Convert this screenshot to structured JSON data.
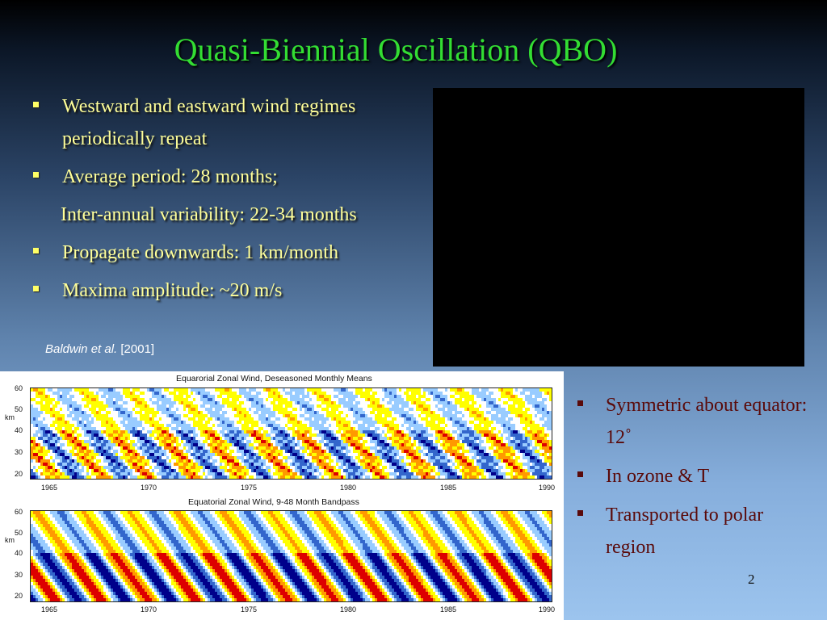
{
  "slide": {
    "title": "Quasi-Biennial Oscillation (QBO)",
    "bullets": [
      "Westward and eastward wind regimes periodically repeat",
      "Average period: 28 months;",
      "Inter-annual variability: 22-34 months",
      "Propagate downwards: 1 km/month",
      "Maxima amplitude: ~20 m/s"
    ],
    "citation_author": "Baldwin et al.",
    "citation_year": "[2001]",
    "right_bullets": [
      "Symmetric about equator: 12˚",
      "In ozone & T",
      "Transported to polar region"
    ],
    "slide_number": "2"
  },
  "figure": {
    "top_title": "Equarorial Zonal Wind, Deseasoned Monthly Means",
    "bottom_title": "Equatorial Zonal Wind, 9-48 Month Bandpass",
    "y_unit": "km",
    "y_ticks": [
      "60",
      "50",
      "40",
      "30",
      "20"
    ],
    "x_ticks": [
      "1965",
      "1970",
      "1975",
      "1980",
      "1985",
      "1990"
    ]
  },
  "chart_data": [
    {
      "type": "heatmap",
      "title": "Equarorial Zonal Wind, Deseasoned Monthly Means",
      "ylabel": "km",
      "xlim": [
        1964,
        1990
      ],
      "ylim": [
        20,
        60
      ],
      "x_ticks": [
        1965,
        1970,
        1975,
        1980,
        1985,
        1990
      ],
      "y_ticks": [
        20,
        30,
        40,
        50,
        60
      ],
      "colors": [
        "#00008b",
        "#3366cc",
        "#99ccff",
        "#ffffff",
        "#ffff00",
        "#ff9900",
        "#dd0000"
      ],
      "period_months": 28,
      "descent_km_per_month": 1
    },
    {
      "type": "heatmap",
      "title": "Equatorial Zonal Wind, 9-48 Month Bandpass",
      "ylabel": "km",
      "xlim": [
        1964,
        1990
      ],
      "ylim": [
        20,
        60
      ],
      "x_ticks": [
        1965,
        1970,
        1975,
        1980,
        1985,
        1990
      ],
      "y_ticks": [
        20,
        30,
        40,
        50,
        60
      ],
      "colors": [
        "#00008b",
        "#3366cc",
        "#99ccff",
        "#ffffff",
        "#ffff00",
        "#ff9900",
        "#dd0000"
      ],
      "period_months": 28,
      "descent_km_per_month": 1
    }
  ]
}
